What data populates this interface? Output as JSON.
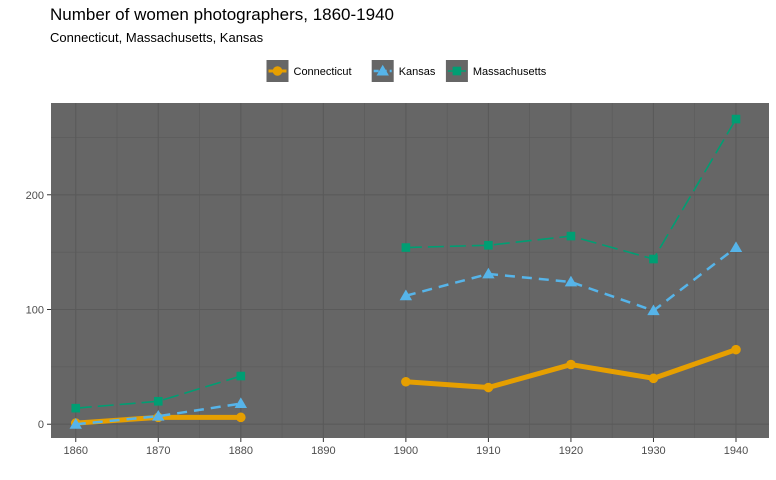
{
  "chart_data": {
    "type": "line",
    "title": "Number of women photographers, 1860-1940",
    "subtitle": "Connecticut, Massachusetts, Kansas",
    "xlabel": "",
    "ylabel": "",
    "x_ticks": [
      1860,
      1870,
      1880,
      1890,
      1900,
      1910,
      1920,
      1930,
      1940
    ],
    "y_ticks": [
      0,
      100,
      200
    ],
    "xlim": [
      1857,
      1944
    ],
    "ylim": [
      -12,
      280
    ],
    "grid": true,
    "legend_position": "top",
    "panel_background": "#666666",
    "grid_color": "#5a5a5a",
    "series": [
      {
        "name": "Connecticut",
        "color": "#E69F00",
        "marker": "circle",
        "line_style": "solid",
        "segments": [
          [
            {
              "x": 1860,
              "y": 1
            },
            {
              "x": 1870,
              "y": 6
            },
            {
              "x": 1880,
              "y": 6
            }
          ],
          [
            {
              "x": 1900,
              "y": 37
            },
            {
              "x": 1910,
              "y": 32
            },
            {
              "x": 1920,
              "y": 52
            },
            {
              "x": 1930,
              "y": 40
            },
            {
              "x": 1940,
              "y": 65
            }
          ]
        ]
      },
      {
        "name": "Kansas",
        "color": "#56B4E9",
        "marker": "triangle",
        "line_style": "dashed",
        "segments": [
          [
            {
              "x": 1860,
              "y": 0
            },
            {
              "x": 1870,
              "y": 7
            },
            {
              "x": 1880,
              "y": 18
            }
          ],
          [
            {
              "x": 1900,
              "y": 112
            },
            {
              "x": 1910,
              "y": 131
            },
            {
              "x": 1920,
              "y": 124
            },
            {
              "x": 1930,
              "y": 99
            },
            {
              "x": 1940,
              "y": 154
            }
          ]
        ]
      },
      {
        "name": "Massachusetts",
        "color": "#009E73",
        "marker": "square",
        "line_style": "longdash",
        "segments": [
          [
            {
              "x": 1860,
              "y": 14
            },
            {
              "x": 1870,
              "y": 20
            },
            {
              "x": 1880,
              "y": 42
            }
          ],
          [
            {
              "x": 1900,
              "y": 154
            },
            {
              "x": 1910,
              "y": 156
            },
            {
              "x": 1920,
              "y": 164
            },
            {
              "x": 1930,
              "y": 144
            },
            {
              "x": 1940,
              "y": 266
            }
          ]
        ]
      }
    ]
  }
}
